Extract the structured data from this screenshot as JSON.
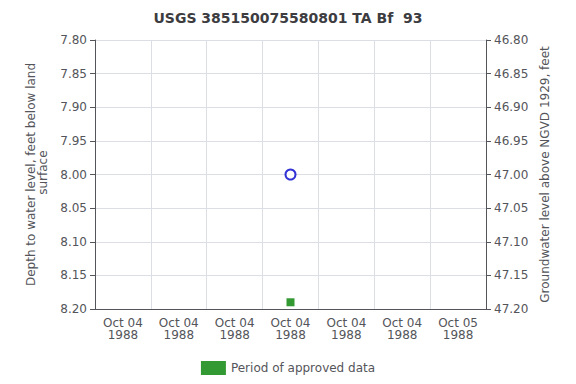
{
  "chart_data": {
    "type": "scatter",
    "title": "USGS 385150075580801 TA Bf  93",
    "ylabel": "Depth to water level, feet below land\n surface",
    "y2label": "Groundwater level above NGVD 1929, feet",
    "categories": [
      "Oct 04\n1988",
      "Oct 04\n1988",
      "Oct 04\n1988",
      "Oct 04\n1988",
      "Oct 04\n1988",
      "Oct 04\n1988",
      "Oct 05\n1988"
    ],
    "series": [
      {
        "color": "#0000cc",
        "marker": "hollow_circle",
        "values": [
          null,
          null,
          null,
          8.0,
          null,
          null,
          null
        ]
      },
      {
        "name": "Period of approved data",
        "color": "#008000",
        "marker": "square",
        "values": [
          null,
          null,
          null,
          8.19,
          null,
          null,
          null
        ]
      }
    ],
    "ylim": [
      8.2,
      7.8
    ],
    "yticks": [
      {
        "value": 7.8,
        "label": "7.80"
      },
      {
        "value": 7.85,
        "label": "7.85"
      },
      {
        "value": 7.9,
        "label": "7.90"
      },
      {
        "value": 7.95,
        "label": "7.95"
      },
      {
        "value": 8.0,
        "label": "8.00"
      },
      {
        "value": 8.05,
        "label": "8.05"
      },
      {
        "value": 8.1,
        "label": "8.10"
      },
      {
        "value": 8.15,
        "label": "8.15"
      },
      {
        "value": 8.2,
        "label": "8.20"
      }
    ],
    "y2lim": [
      47.2,
      46.8
    ],
    "y2ticks": [
      {
        "value": 46.8,
        "label": "46.80"
      },
      {
        "value": 46.85,
        "label": "46.85"
      },
      {
        "value": 46.9,
        "label": "46.90"
      },
      {
        "value": 46.95,
        "label": "46.95"
      },
      {
        "value": 47.0,
        "label": "47.00"
      },
      {
        "value": 47.05,
        "label": "47.05"
      },
      {
        "value": 47.1,
        "label": "47.10"
      },
      {
        "value": 47.15,
        "label": "47.15"
      },
      {
        "value": 47.2,
        "label": "47.20"
      }
    ],
    "grid": true,
    "legend": "bottom"
  }
}
